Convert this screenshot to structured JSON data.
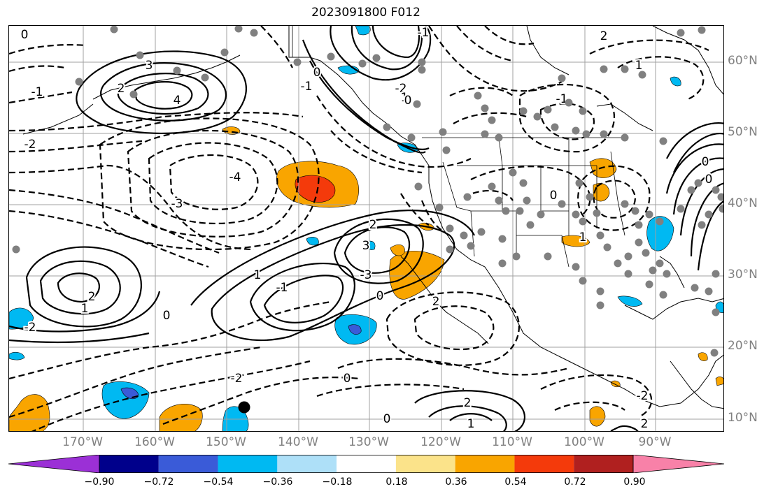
{
  "title": "2023091800 F012",
  "latitude_labels": [
    "60°N",
    "50°N",
    "40°N",
    "30°N",
    "20°N",
    "10°N"
  ],
  "longitude_labels": [
    "170°W",
    "160°W",
    "150°W",
    "140°W",
    "130°W",
    "120°W",
    "110°W",
    "100°W",
    "90°W"
  ],
  "colorbar": {
    "tick_labels": [
      "−0.90",
      "−0.72",
      "−0.54",
      "−0.36",
      "−0.18",
      "0.18",
      "0.36",
      "0.54",
      "0.72",
      "0.90"
    ],
    "colors": [
      "#9b30d6",
      "#00008b",
      "#3a5bd8",
      "#00b9f2",
      "#aee0f8",
      "#ffffff",
      "#fbe38a",
      "#f9a500",
      "#f43a0b",
      "#b0201f",
      "#f881a8"
    ]
  },
  "contour_labels": [
    "0",
    "-1",
    "2",
    "-2",
    "3",
    "-3",
    "4",
    "-4",
    "1",
    "2",
    "-2",
    "0",
    "1",
    "-1",
    "2",
    "3",
    "-3",
    "0",
    "2",
    "-2",
    "1",
    "-1",
    "0",
    "2",
    "1",
    "0",
    "-2",
    "0",
    "2",
    "1",
    "-1",
    "0",
    "0",
    "0",
    "1",
    "-2",
    "2",
    "-1",
    "0"
  ],
  "dots": {
    "gray": "#808080",
    "marker": "#000000"
  }
}
